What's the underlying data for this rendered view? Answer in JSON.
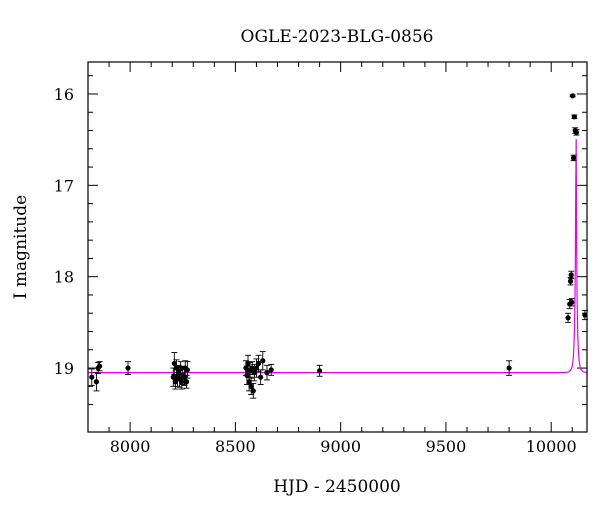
{
  "chart_data": {
    "type": "scatter",
    "title": "OGLE-2023-BLG-0856",
    "xlabel": "HJD - 2450000",
    "ylabel": "I magnitude",
    "xlim": [
      7800,
      10170
    ],
    "ylim": [
      19.7,
      15.65
    ],
    "y_inverted": true,
    "xticks": [
      8000,
      8500,
      9000,
      9500,
      10000
    ],
    "yticks": [
      16,
      17,
      18,
      19
    ],
    "grid": false,
    "colors": {
      "points": "#000000",
      "model": "#e800e8"
    },
    "series": [
      {
        "type": "scatter-errorbars",
        "x": [
          7818,
          7840,
          7848,
          7855,
          7990,
          8205,
          8210,
          8215,
          8220,
          8225,
          8230,
          8235,
          8240,
          8245,
          8250,
          8258,
          8262,
          8268,
          8272,
          8550,
          8555,
          8560,
          8565,
          8570,
          8575,
          8580,
          8585,
          8590,
          8600,
          8610,
          8620,
          8630,
          8650,
          8670,
          8900,
          9800,
          10080,
          10088,
          10092,
          10095,
          10098,
          10102,
          10106,
          10110,
          10114,
          10120,
          10160
        ],
        "y": [
          19.1,
          19.15,
          19.0,
          18.98,
          19.0,
          19.1,
          18.95,
          19.15,
          19.0,
          19.1,
          19.05,
          19.12,
          19.0,
          19.15,
          19.08,
          19.1,
          19.0,
          19.15,
          19.02,
          19.0,
          19.08,
          18.95,
          19.15,
          19.02,
          19.2,
          19.0,
          19.25,
          19.05,
          19.0,
          18.95,
          19.1,
          18.92,
          19.05,
          19.02,
          19.03,
          19.0,
          18.45,
          18.3,
          18.05,
          17.98,
          18.28,
          16.02,
          16.7,
          16.25,
          16.4,
          16.42,
          18.42
        ],
        "err": [
          0.09,
          0.1,
          0.06,
          0.05,
          0.07,
          0.1,
          0.12,
          0.08,
          0.09,
          0.1,
          0.08,
          0.09,
          0.07,
          0.08,
          0.1,
          0.09,
          0.08,
          0.07,
          0.09,
          0.08,
          0.1,
          0.09,
          0.1,
          0.08,
          0.09,
          0.07,
          0.08,
          0.09,
          0.1,
          0.09,
          0.08,
          0.1,
          0.08,
          0.06,
          0.06,
          0.08,
          0.05,
          0.05,
          0.04,
          0.04,
          0.04,
          0.01,
          0.03,
          0.02,
          0.03,
          0.03,
          0.05
        ]
      },
      {
        "type": "model-curve",
        "baseline": 19.05,
        "peak_time": 10118,
        "peak_magnitude": 16.17,
        "tE": 9.5,
        "u0": 0.077
      }
    ]
  }
}
